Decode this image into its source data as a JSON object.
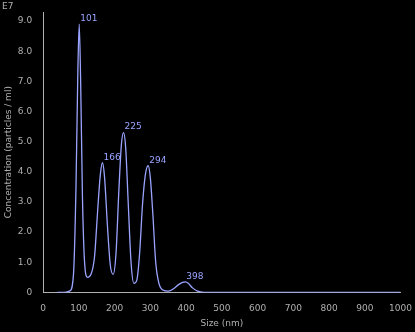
{
  "chart_data": {
    "type": "line",
    "x_label": "Size (nm)",
    "y_label": "Concentration (particles / ml)",
    "y_exponent_label": "E7",
    "x": [
      40,
      60,
      75,
      85,
      92,
      97,
      101,
      105,
      110,
      116,
      124,
      134,
      144,
      152,
      160,
      166,
      172,
      180,
      188,
      196,
      204,
      212,
      219,
      225,
      231,
      238,
      246,
      254,
      262,
      270,
      278,
      286,
      294,
      300,
      307,
      315,
      324,
      335,
      350,
      365,
      378,
      390,
      398,
      406,
      418,
      432,
      450,
      500,
      600,
      700,
      800,
      900,
      1000
    ],
    "values": [
      0,
      0,
      0.05,
      0.6,
      3.5,
      7.2,
      8.9,
      7.0,
      3.2,
      1.0,
      0.5,
      0.6,
      1.2,
      2.6,
      3.9,
      4.3,
      3.8,
      2.2,
      0.9,
      0.6,
      1.3,
      3.4,
      4.9,
      5.3,
      4.8,
      3.0,
      1.0,
      0.3,
      0.4,
      1.3,
      2.9,
      3.9,
      4.2,
      3.8,
      2.6,
      1.0,
      0.3,
      0.08,
      0.04,
      0.12,
      0.25,
      0.33,
      0.35,
      0.3,
      0.15,
      0.04,
      0,
      0,
      0,
      0,
      0,
      0,
      0
    ],
    "color": "#9aa4ff",
    "xlim": [
      0,
      1000
    ],
    "xticks": [
      0,
      100,
      200,
      300,
      400,
      500,
      600,
      700,
      800,
      900,
      1000
    ],
    "ylim": [
      0,
      9.3
    ],
    "yticks": [
      0,
      {
        "value": 1,
        "label": "1.0"
      },
      {
        "value": 2,
        "label": "2.0"
      },
      {
        "value": 3,
        "label": "3.0"
      },
      {
        "value": 4,
        "label": "4.0"
      },
      {
        "value": 5,
        "label": "5.0"
      },
      {
        "value": 6,
        "label": "6.0"
      },
      {
        "value": 7,
        "label": "7.0"
      },
      {
        "value": 8,
        "label": "8.0"
      },
      {
        "value": 9,
        "label": "9.0"
      }
    ],
    "annotations": [
      {
        "x": 101,
        "y": 8.9,
        "text": "101"
      },
      {
        "x": 166,
        "y": 4.3,
        "text": "166"
      },
      {
        "x": 225,
        "y": 5.3,
        "text": "225"
      },
      {
        "x": 294,
        "y": 4.2,
        "text": "294"
      },
      {
        "x": 398,
        "y": 0.35,
        "text": "398"
      }
    ],
    "grid": false
  }
}
